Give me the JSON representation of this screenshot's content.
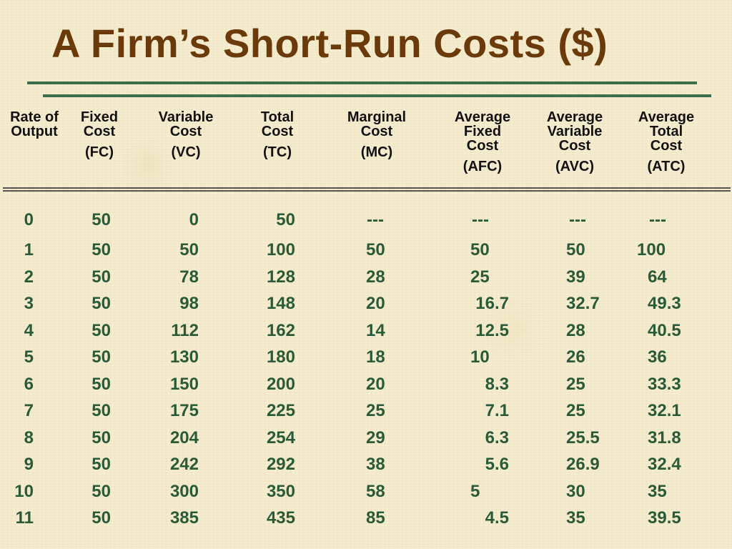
{
  "title": "A Firm’s Short-Run Costs ($)",
  "headers": [
    {
      "lines": [
        "Rate of",
        "Output"
      ],
      "abbr": ""
    },
    {
      "lines": [
        "Fixed",
        "Cost"
      ],
      "abbr": "(FC)"
    },
    {
      "lines": [
        "Variable",
        "Cost"
      ],
      "abbr": "(VC)"
    },
    {
      "lines": [
        "Total",
        "Cost"
      ],
      "abbr": "(TC)"
    },
    {
      "lines": [
        "Marginal",
        "Cost"
      ],
      "abbr": "(MC)"
    },
    {
      "lines": [
        "Average",
        "Fixed",
        "Cost"
      ],
      "abbr": "(AFC)"
    },
    {
      "lines": [
        "Average",
        "Variable",
        "Cost"
      ],
      "abbr": "(AVC)"
    },
    {
      "lines": [
        "Average",
        "Total",
        "Cost"
      ],
      "abbr": "(ATC)"
    }
  ],
  "rows": [
    [
      "0",
      "50",
      "0",
      "50",
      "---",
      "---",
      "---",
      "---"
    ],
    [
      "1",
      "50",
      "50",
      "100",
      "50",
      "50",
      "50",
      "100"
    ],
    [
      "2",
      "50",
      "78",
      "128",
      "28",
      "25",
      "39",
      "64"
    ],
    [
      "3",
      "50",
      "98",
      "148",
      "20",
      "16.7",
      "32.7",
      "49.3"
    ],
    [
      "4",
      "50",
      "112",
      "162",
      "14",
      "12.5",
      "28",
      "40.5"
    ],
    [
      "5",
      "50",
      "130",
      "180",
      "18",
      "10",
      "26",
      "36"
    ],
    [
      "6",
      "50",
      "150",
      "200",
      "20",
      "8.3",
      "25",
      "33.3"
    ],
    [
      "7",
      "50",
      "175",
      "225",
      "25",
      "7.1",
      "25",
      "32.1"
    ],
    [
      "8",
      "50",
      "204",
      "254",
      "29",
      "6.3",
      "25.5",
      "31.8"
    ],
    [
      "9",
      "50",
      "242",
      "292",
      "38",
      "5.6",
      "26.9",
      "32.4"
    ],
    [
      "10",
      "50",
      "300",
      "350",
      "58",
      "5",
      "30",
      "35"
    ],
    [
      "11",
      "50",
      "385",
      "435",
      "85",
      "4.5",
      "35",
      "39.5"
    ]
  ]
}
